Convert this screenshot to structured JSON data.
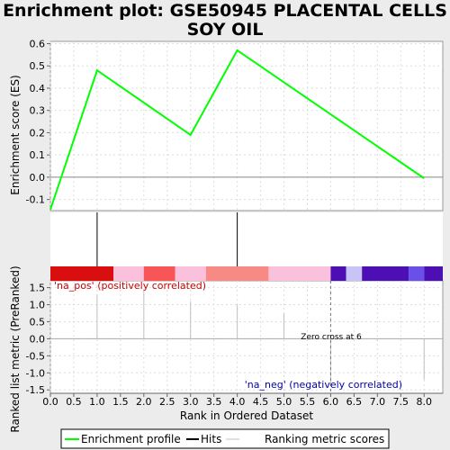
{
  "chart_data": {
    "type": "line",
    "title_lines": [
      "Enrichment plot: GSE50945 PLACENTAL CELLS",
      "SOY OIL"
    ],
    "xlabel": "Rank in Ordered Dataset",
    "xlim": [
      0,
      8.4
    ],
    "xticks": [
      "0.0",
      "0.5",
      "1.0",
      "1.5",
      "2.0",
      "2.5",
      "3.0",
      "3.5",
      "4.0",
      "4.5",
      "5.0",
      "5.5",
      "6.0",
      "6.5",
      "7.0",
      "7.5",
      "8.0"
    ],
    "grid": true,
    "es_panel": {
      "ylabel": "Enrichment score (ES)",
      "ylim": [
        -0.15,
        0.61
      ],
      "yticks": [
        "-0.1",
        "0.0",
        "0.1",
        "0.2",
        "0.3",
        "0.4",
        "0.5",
        "0.6"
      ],
      "series": [
        {
          "name": "Enrichment profile",
          "color": "#00ff00",
          "x": [
            0,
            1,
            3,
            4,
            8
          ],
          "y": [
            -0.145,
            0.48,
            0.19,
            0.57,
            -0.005
          ]
        }
      ]
    },
    "hits": [
      1,
      4
    ],
    "color_bar": [
      {
        "from": 0.0,
        "to": 1.35,
        "color": "#d90f0f"
      },
      {
        "from": 1.35,
        "to": 2.0,
        "color": "#fbc0db"
      },
      {
        "from": 2.0,
        "to": 2.67,
        "color": "#f85656"
      },
      {
        "from": 2.67,
        "to": 3.33,
        "color": "#fbc0db"
      },
      {
        "from": 3.33,
        "to": 4.67,
        "color": "#f78a85"
      },
      {
        "from": 4.67,
        "to": 6.0,
        "color": "#fbc0db"
      },
      {
        "from": 6.0,
        "to": 6.33,
        "color": "#4b0fb4"
      },
      {
        "from": 6.33,
        "to": 6.67,
        "color": "#c8c4f5"
      },
      {
        "from": 6.67,
        "to": 7.67,
        "color": "#4b0fb4"
      },
      {
        "from": 7.67,
        "to": 8.0,
        "color": "#6a4fe8"
      },
      {
        "from": 8.0,
        "to": 8.4,
        "color": "#4b0fb4"
      }
    ],
    "metric_panel": {
      "ylabel": "Ranked list metric (PreRanked)",
      "ylim": [
        -1.6,
        1.7
      ],
      "yticks": [
        "-1.5",
        "-1.0",
        "-0.5",
        "0.0",
        "0.5",
        "1.0",
        "1.5"
      ],
      "x": [
        1,
        2,
        3,
        4,
        5,
        6,
        7,
        8
      ],
      "values": [
        1.3,
        1.45,
        1.1,
        1.0,
        0.75,
        -1.4,
        -0.05,
        -1.2
      ],
      "pos_label": "'na_pos' (positively correlated)",
      "neg_label": "'na_neg' (negatively correlated)",
      "zero_cross_label": "Zero cross at 6",
      "zero_cross": 6
    },
    "legend": {
      "placement": "bottom",
      "items": [
        {
          "label": "Enrichment profile",
          "color": "#00ff00"
        },
        {
          "label": "Hits",
          "color": "#000000"
        },
        {
          "label": "Ranking metric scores",
          "color": "#c0c0c0"
        }
      ]
    }
  }
}
